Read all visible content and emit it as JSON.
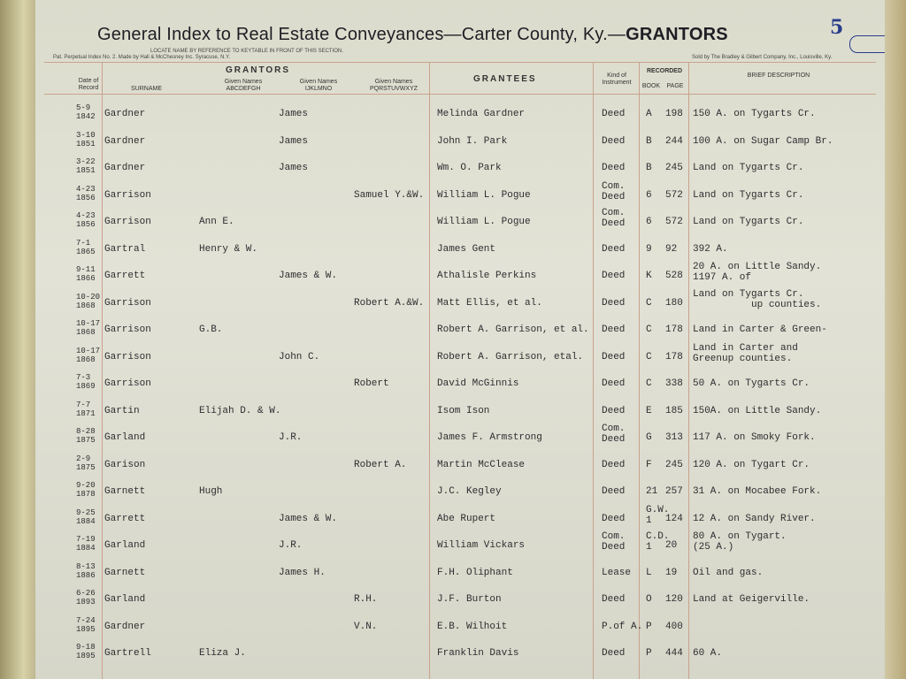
{
  "header": {
    "title": "General Index to Real Estate Conveyances—Carter County, Ky.—",
    "title_bold": "GRANTORS",
    "page_number": "5",
    "locate_note": "LOCATE NAME BY REFERENCE TO KEYTABLE IN FRONT OF THIS SECTION.",
    "maker": "Pat. Perpetual Index No. 2. Made by Hall & McChesney Inc. Syracuse, N.Y.",
    "seller": "Sold by The Bradley & Gilbert Company, Inc., Louisville, Ky."
  },
  "columns": {
    "date": "Date of Record",
    "grantors": "GRANTORS",
    "surname": "SURNAME",
    "given_abcdefgh": "Given Names ABCDEFGH",
    "given_ijklmno": "Given Names IJKLMNO",
    "given_pqrstuvwxyz": "Given Names PQRSTUVWXYZ",
    "grantees": "GRANTEES",
    "kind": "Kind of Instrument",
    "recorded": "RECORDED",
    "book": "BOOK",
    "page": "PAGE",
    "description": "BRIEF DESCRIPTION"
  },
  "rows": [
    {
      "date": "5-9 1842",
      "surname": "Gardner",
      "given_ijklmno": "James",
      "grantee": "Melinda Gardner",
      "kind": "Deed",
      "book": "A",
      "page": "198",
      "description": "150 A. on Tygarts Cr."
    },
    {
      "date": "3-10 1851",
      "surname": "Gardner",
      "given_ijklmno": "James",
      "grantee": "John I. Park",
      "kind": "Deed",
      "book": "B",
      "page": "244",
      "description": "100 A. on Sugar Camp Br."
    },
    {
      "date": "3-22 1851",
      "surname": "Gardner",
      "given_ijklmno": "James",
      "grantee": "Wm. O. Park",
      "kind": "Deed",
      "book": "B",
      "page": "245",
      "description": "Land on Tygarts Cr."
    },
    {
      "date": "4-23 1856",
      "surname": "Garrison",
      "given_pqrstuvwxyz": "Samuel Y.&W.",
      "grantee": "William L. Pogue",
      "kind": "Com.\nDeed",
      "book": "6",
      "page": "572",
      "description": "Land on Tygarts Cr."
    },
    {
      "date": "4-23 1856",
      "surname": "Garrison",
      "given_abcdefgh": "Ann E.",
      "grantee": "William L. Pogue",
      "kind": "Com.\nDeed",
      "book": "6",
      "page": "572",
      "description": "Land on Tygarts Cr."
    },
    {
      "date": "7-1 1865",
      "surname": "Gartral",
      "given_abcdefgh": "Henry & W.",
      "grantee": "James Gent",
      "kind": "Deed",
      "book": "9",
      "page": "92",
      "description": "392 A."
    },
    {
      "date": "9-11 1866",
      "surname": "Garrett",
      "given_ijklmno": "James & W.",
      "grantee": "Athalisle Perkins",
      "kind": "Deed",
      "book": "K",
      "page": "528",
      "description": "20 A. on Little Sandy.\n1197 A. of"
    },
    {
      "date": "10-20 1868",
      "surname": "Garrison",
      "given_pqrstuvwxyz": "Robert A.&W.",
      "grantee": "Matt Ellis, et al.",
      "kind": "Deed",
      "book": "C",
      "page": "180",
      "description": "Land on Tygarts Cr.\n          up counties."
    },
    {
      "date": "10-17 1868",
      "surname": "Garrison",
      "given_abcdefgh": "G.B.",
      "grantee": "Robert A. Garrison, et al.",
      "kind": "Deed",
      "book": "C",
      "page": "178",
      "description": "Land in Carter & Green-"
    },
    {
      "date": "10-17 1868",
      "surname": "Garrison",
      "given_ijklmno": "John C.",
      "grantee": "Robert A. Garrison, etal.",
      "kind": "Deed",
      "book": "C",
      "page": "178",
      "description": "Land in Carter and\nGreenup counties."
    },
    {
      "date": "7-3 1869",
      "surname": "Garrison",
      "given_pqrstuvwxyz": "Robert",
      "grantee": "David McGinnis",
      "kind": "Deed",
      "book": "C",
      "page": "338",
      "description": "50 A. on Tygarts Cr."
    },
    {
      "date": "7-7 1871",
      "surname": "Gartin",
      "given_abcdefgh": "Elijah D. & W.",
      "grantee": "Isom Ison",
      "kind": "Deed",
      "book": "E",
      "page": "185",
      "description": "150A. on Little Sandy."
    },
    {
      "date": "8-28 1875",
      "surname": "Garland",
      "given_ijklmno": "J.R.",
      "grantee": "James F. Armstrong",
      "kind": "Com.\nDeed",
      "book": "G",
      "page": "313",
      "description": "117 A. on Smoky Fork."
    },
    {
      "date": "2-9 1875",
      "surname": "Garison",
      "given_pqrstuvwxyz": "Robert A.",
      "grantee": "Martin McClease",
      "kind": "Deed",
      "book": "F",
      "page": "245",
      "description": "120 A. on Tygart Cr."
    },
    {
      "date": "9-20 1878",
      "surname": "Garnett",
      "given_abcdefgh": "Hugh",
      "grantee": "J.C. Kegley",
      "kind": "Deed",
      "book": "21",
      "page": "257",
      "description": "31 A. on Mocabee Fork."
    },
    {
      "date": "9-25 1884",
      "surname": "Garrett",
      "given_ijklmno": "James & W.",
      "grantee": "Abe Rupert",
      "kind": "Deed",
      "book": "G.W.\n1",
      "page": "124",
      "description": "12 A. on Sandy River."
    },
    {
      "date": "7-19 1884",
      "surname": "Garland",
      "given_ijklmno": "J.R.",
      "grantee": "William Vickars",
      "kind": "Com.\nDeed",
      "book": "C.D.\n1",
      "page": "20",
      "description": "80 A. on Tygart.\n(25 A.)"
    },
    {
      "date": "8-13 1886",
      "surname": "Garnett",
      "given_ijklmno": "James H.",
      "grantee": "F.H. Oliphant",
      "kind": "Lease",
      "book": "L",
      "page": "19",
      "description": "Oil and gas."
    },
    {
      "date": "6-26 1893",
      "surname": "Garland",
      "given_pqrstuvwxyz": "R.H.",
      "grantee": "J.F. Burton",
      "kind": "Deed",
      "book": "O",
      "page": "120",
      "description": "Land at Geigerville."
    },
    {
      "date": "7-24 1895",
      "surname": "Gardner",
      "given_pqrstuvwxyz": "V.N.",
      "grantee": "E.B. Wilhoit",
      "kind": "P.of A.",
      "book": "P",
      "page": "400"
    },
    {
      "date": "9-18 1895",
      "surname": "Gartrell",
      "given_abcdefgh": "Eliza J.",
      "grantee": "Franklin Davis",
      "kind": "Deed",
      "book": "P",
      "page": "444",
      "description": "60 A."
    }
  ]
}
